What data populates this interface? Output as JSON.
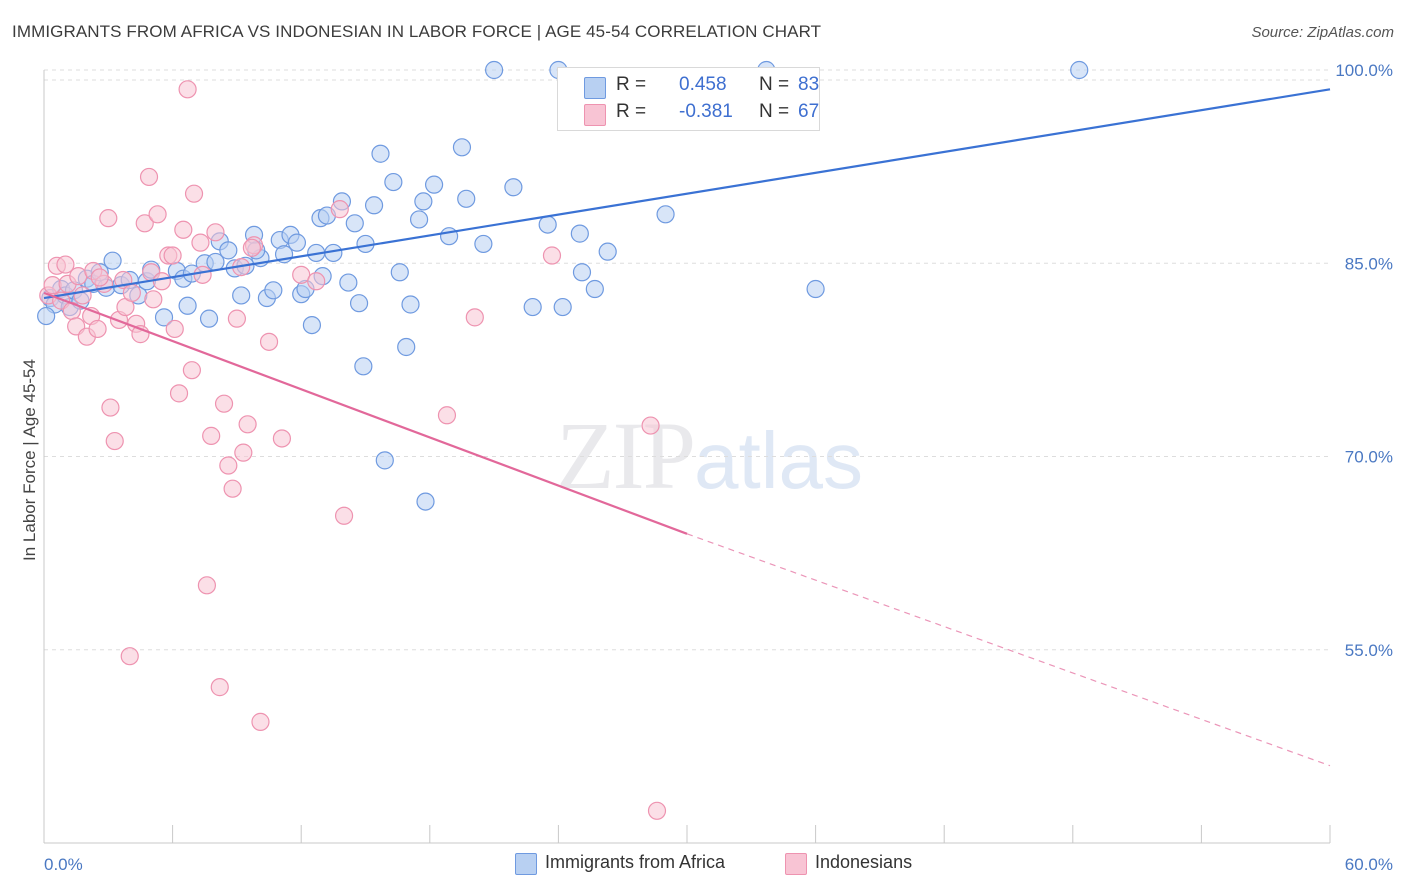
{
  "header": {
    "title": "IMMIGRANTS FROM AFRICA VS INDONESIAN IN LABOR FORCE | AGE 45-54 CORRELATION CHART",
    "source": "Source: ZipAtlas.com"
  },
  "watermark": {
    "zip": "ZIP",
    "atlas": "atlas"
  },
  "legend": {
    "rows": [
      {
        "r_label": "R = ",
        "r_value": "0.458",
        "n_label": "N = ",
        "n_value": "83"
      },
      {
        "r_label": "R = ",
        "r_value": "-0.381",
        "n_label": "N = ",
        "n_value": "67"
      }
    ]
  },
  "bottom_legend": {
    "items": [
      {
        "label": "Immigrants from Africa"
      },
      {
        "label": "Indonesians"
      }
    ]
  },
  "colors": {
    "blue_fill": "#b8d0f2",
    "blue_stroke": "#6f9ae0",
    "blue_line": "#3a72d4",
    "pink_fill": "#f8c4d4",
    "pink_stroke": "#ee93b0",
    "pink_line": "#e2689a",
    "grid": "#dddddd",
    "tick_text": "#4a78c2"
  },
  "chart_data": {
    "type": "scatter",
    "title": "IMMIGRANTS FROM AFRICA VS INDONESIAN IN LABOR FORCE | AGE 45-54 CORRELATION CHART",
    "xlabel": "",
    "ylabel": "In Labor Force | Age 45-54",
    "xlim": [
      0,
      60
    ],
    "ylim": [
      40,
      100
    ],
    "x_tick_labels": [
      "0.0%",
      "60.0%"
    ],
    "y_ticks": [
      55,
      70,
      85,
      100
    ],
    "y_tick_labels": [
      "55.0%",
      "70.0%",
      "85.0%",
      "100.0%"
    ],
    "grid": true,
    "legend_placement": "top-center",
    "series": [
      {
        "name": "Immigrants from Africa",
        "r": 0.458,
        "n": 83,
        "trend": {
          "x0": 0,
          "y0": 82.3,
          "x1": 60,
          "y1": 98.5,
          "dashed_from": null
        },
        "points": [
          [
            0.3,
            82.3
          ],
          [
            0.5,
            81.8
          ],
          [
            0.8,
            83.0
          ],
          [
            1.0,
            82.5
          ],
          [
            1.2,
            81.6
          ],
          [
            1.4,
            82.9
          ],
          [
            1.7,
            82.1
          ],
          [
            2.0,
            83.8
          ],
          [
            2.3,
            83.4
          ],
          [
            2.6,
            84.3
          ],
          [
            2.9,
            83.1
          ],
          [
            3.2,
            85.2
          ],
          [
            3.6,
            83.3
          ],
          [
            4.0,
            83.7
          ],
          [
            4.4,
            82.5
          ],
          [
            4.8,
            83.6
          ],
          [
            5.6,
            80.8
          ],
          [
            6.2,
            84.4
          ],
          [
            6.5,
            83.8
          ],
          [
            6.7,
            81.7
          ],
          [
            6.9,
            84.2
          ],
          [
            7.5,
            85.0
          ],
          [
            7.7,
            80.7
          ],
          [
            8.0,
            85.1
          ],
          [
            8.2,
            86.7
          ],
          [
            8.6,
            86.0
          ],
          [
            8.9,
            84.6
          ],
          [
            9.2,
            82.5
          ],
          [
            9.4,
            84.8
          ],
          [
            9.8,
            87.2
          ],
          [
            10.1,
            85.4
          ],
          [
            10.4,
            82.3
          ],
          [
            10.7,
            82.9
          ],
          [
            11.0,
            86.8
          ],
          [
            11.2,
            85.7
          ],
          [
            11.5,
            87.2
          ],
          [
            11.8,
            86.6
          ],
          [
            12.0,
            82.6
          ],
          [
            12.2,
            83.0
          ],
          [
            12.5,
            80.2
          ],
          [
            12.7,
            85.8
          ],
          [
            12.9,
            88.5
          ],
          [
            13.2,
            88.7
          ],
          [
            13.5,
            85.8
          ],
          [
            13.9,
            89.8
          ],
          [
            14.2,
            83.5
          ],
          [
            14.5,
            88.1
          ],
          [
            14.7,
            81.9
          ],
          [
            14.9,
            77.0
          ],
          [
            15.0,
            86.5
          ],
          [
            15.4,
            89.5
          ],
          [
            15.7,
            93.5
          ],
          [
            15.9,
            69.7
          ],
          [
            16.3,
            91.3
          ],
          [
            16.6,
            84.3
          ],
          [
            16.9,
            78.5
          ],
          [
            17.1,
            81.8
          ],
          [
            17.5,
            88.4
          ],
          [
            17.7,
            89.8
          ],
          [
            17.8,
            66.5
          ],
          [
            18.2,
            91.1
          ],
          [
            18.9,
            87.1
          ],
          [
            19.5,
            94.0
          ],
          [
            19.7,
            90.0
          ],
          [
            20.5,
            86.5
          ],
          [
            21.0,
            100.0
          ],
          [
            21.9,
            90.9
          ],
          [
            22.8,
            81.6
          ],
          [
            23.5,
            88.0
          ],
          [
            24.0,
            100.0
          ],
          [
            24.2,
            81.6
          ],
          [
            25.0,
            87.3
          ],
          [
            25.1,
            84.3
          ],
          [
            25.7,
            83.0
          ],
          [
            26.3,
            85.9
          ],
          [
            29.0,
            88.8
          ],
          [
            33.7,
            100.0
          ],
          [
            36.0,
            83.0
          ],
          [
            48.3,
            100.0
          ],
          [
            0.1,
            80.9
          ],
          [
            9.9,
            86.0
          ],
          [
            13.0,
            84.0
          ],
          [
            5.0,
            84.5
          ]
        ]
      },
      {
        "name": "Indonesians",
        "r": -0.381,
        "n": 67,
        "trend": {
          "x0": 0,
          "y0": 82.7,
          "x1": 30,
          "y1": 64.0,
          "dashed_from": 30,
          "x2": 60,
          "y2": 46.0
        },
        "points": [
          [
            0.2,
            82.5
          ],
          [
            0.4,
            83.3
          ],
          [
            0.6,
            84.8
          ],
          [
            0.8,
            82.1
          ],
          [
            1.1,
            83.4
          ],
          [
            1.3,
            81.3
          ],
          [
            1.5,
            80.1
          ],
          [
            1.6,
            84.0
          ],
          [
            1.8,
            82.5
          ],
          [
            2.0,
            79.3
          ],
          [
            2.2,
            80.9
          ],
          [
            2.3,
            84.4
          ],
          [
            2.5,
            79.9
          ],
          [
            2.8,
            83.4
          ],
          [
            3.0,
            88.5
          ],
          [
            3.1,
            73.8
          ],
          [
            3.3,
            71.2
          ],
          [
            3.5,
            80.6
          ],
          [
            3.7,
            83.7
          ],
          [
            3.8,
            81.6
          ],
          [
            4.1,
            82.7
          ],
          [
            4.3,
            80.3
          ],
          [
            4.5,
            79.5
          ],
          [
            4.7,
            88.1
          ],
          [
            4.9,
            91.7
          ],
          [
            5.0,
            84.3
          ],
          [
            5.3,
            88.8
          ],
          [
            5.5,
            83.6
          ],
          [
            5.8,
            85.6
          ],
          [
            6.0,
            85.6
          ],
          [
            6.3,
            74.9
          ],
          [
            6.5,
            87.6
          ],
          [
            6.7,
            98.5
          ],
          [
            6.9,
            76.7
          ],
          [
            7.0,
            90.4
          ],
          [
            7.3,
            86.6
          ],
          [
            7.4,
            84.1
          ],
          [
            7.6,
            60.0
          ],
          [
            7.8,
            71.6
          ],
          [
            8.0,
            87.4
          ],
          [
            8.2,
            52.1
          ],
          [
            8.4,
            74.1
          ],
          [
            8.6,
            69.3
          ],
          [
            8.8,
            67.5
          ],
          [
            9.0,
            80.7
          ],
          [
            9.2,
            84.7
          ],
          [
            9.3,
            70.3
          ],
          [
            9.5,
            72.5
          ],
          [
            9.8,
            86.4
          ],
          [
            10.1,
            49.4
          ],
          [
            10.5,
            78.9
          ],
          [
            11.1,
            71.4
          ],
          [
            12.0,
            84.1
          ],
          [
            12.7,
            83.6
          ],
          [
            13.8,
            89.2
          ],
          [
            14.0,
            65.4
          ],
          [
            18.8,
            73.2
          ],
          [
            20.1,
            80.8
          ],
          [
            23.7,
            85.6
          ],
          [
            28.3,
            72.4
          ],
          [
            28.6,
            42.5
          ],
          [
            4.0,
            54.5
          ],
          [
            9.7,
            86.2
          ],
          [
            2.6,
            83.9
          ],
          [
            5.1,
            82.2
          ],
          [
            1.0,
            84.9
          ],
          [
            6.1,
            79.9
          ]
        ]
      }
    ]
  }
}
